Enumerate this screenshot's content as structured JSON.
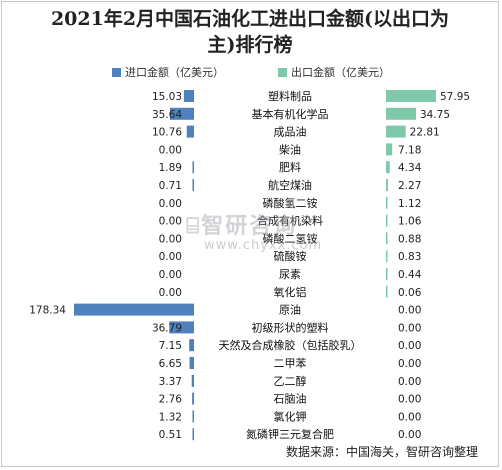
{
  "title": "2021年2月中国石油化工进出口金额(以出口为主)排行榜",
  "source": "数据来源：中国海关，智研咨询整理",
  "watermark": {
    "logo_text": "智研咨询",
    "url": "www.chyxx.com"
  },
  "colors": {
    "import": "#4f81bd",
    "export": "#7fc8a9"
  },
  "chart_data": {
    "type": "bar",
    "title": "2021年2月中国石油化工进出口金额(以出口为主)排行榜",
    "legend_position": "top",
    "categories": [
      "塑料制品",
      "基本有机化学品",
      "成品油",
      "柴油",
      "肥料",
      "航空煤油",
      "磷酸氢二铵",
      "合成有机染料",
      "磷酸二氢铵",
      "硫酸铵",
      "尿素",
      "氧化铝",
      "原油",
      "初级形状的塑料",
      "天然及合成橡胶（包括胶乳）",
      "二甲苯",
      "乙二醇",
      "石脑油",
      "氯化钾",
      "氮磷钾三元复合肥"
    ],
    "series": [
      {
        "name": "进口金额（亿美元）",
        "values": [
          15.03,
          35.64,
          10.76,
          0.0,
          1.89,
          0.71,
          0.0,
          0.0,
          0.0,
          0.0,
          0.0,
          0.0,
          178.34,
          36.79,
          7.15,
          6.65,
          3.37,
          2.76,
          1.32,
          0.51
        ],
        "labels": [
          "15.03",
          "35.64",
          "10.76",
          "0.00",
          "1.89",
          "0.71",
          "0.00",
          "0.00",
          "0.00",
          "0.00",
          "0.00",
          "0.00",
          "178.34",
          "36.79",
          "7.15",
          "6.65",
          "3.37",
          "2.76",
          "1.32",
          "0.51"
        ]
      },
      {
        "name": "出口金额（亿美元）",
        "values": [
          57.95,
          34.75,
          22.81,
          7.18,
          4.34,
          2.27,
          1.12,
          1.06,
          0.88,
          0.83,
          0.44,
          0.06,
          0.0,
          0.0,
          0.0,
          0.0,
          0.0,
          0.0,
          0.0,
          0.0
        ],
        "labels": [
          "57.95",
          "34.75",
          "22.81",
          "7.18",
          "4.34",
          "2.27",
          "1.12",
          "1.06",
          "0.88",
          "0.83",
          "0.44",
          "0.06",
          "0.00",
          "0.00",
          "0.00",
          "0.00",
          "0.00",
          "0.00",
          "0.00",
          "0.00"
        ]
      }
    ]
  }
}
